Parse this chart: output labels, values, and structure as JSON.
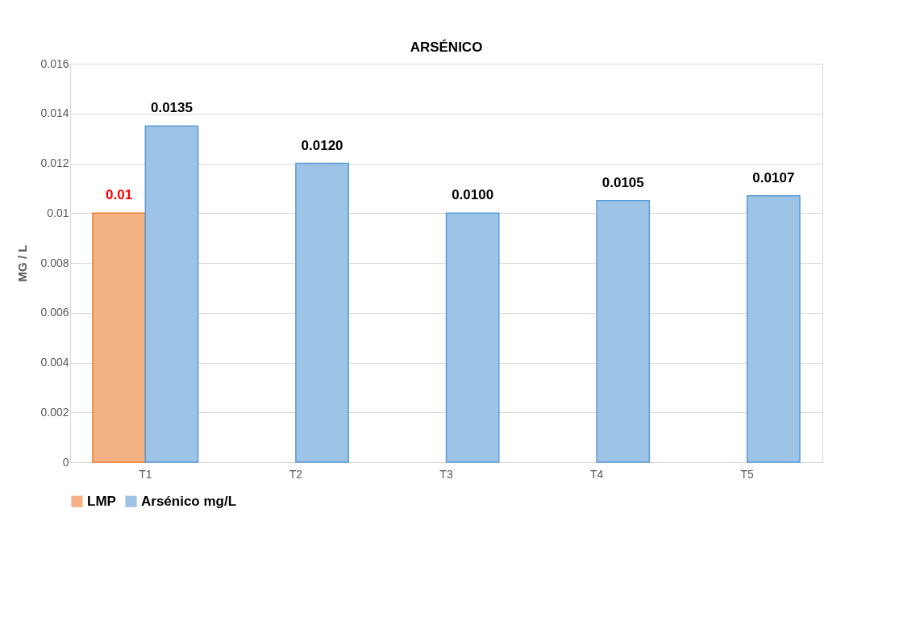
{
  "chart_data": {
    "type": "bar",
    "title": "ARSÉNICO",
    "ylabel": "MG / L",
    "categories": [
      "T1",
      "T2",
      "T3",
      "T4",
      "T5"
    ],
    "series": [
      {
        "name": "LMP",
        "color": "#f4b183",
        "values": [
          0.01,
          null,
          null,
          null,
          null
        ],
        "value_labels": [
          "0.01",
          null,
          null,
          null,
          null
        ]
      },
      {
        "name": "Arsénico  mg/L",
        "color": "#9dc3e6",
        "values": [
          0.0135,
          0.012,
          0.01,
          0.0105,
          0.0107
        ],
        "value_labels": [
          "0.0135",
          "0.0120",
          "0.0100",
          "0.0105",
          "0.0107"
        ]
      }
    ],
    "ylim": [
      0,
      0.016
    ],
    "yticks": [
      0,
      0.002,
      0.004,
      0.006,
      0.008,
      0.01,
      0.012,
      0.014,
      0.016
    ],
    "grid": "y",
    "legend": "bottom"
  }
}
